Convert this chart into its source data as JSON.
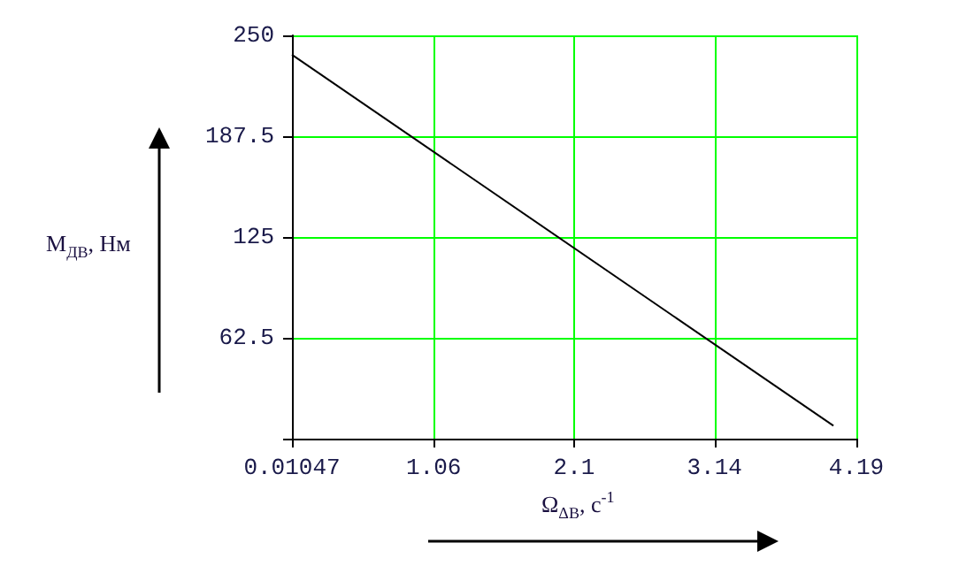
{
  "chart_data": {
    "type": "line",
    "xlabel": "Ω$_{ΔВ}$, c$^{-1}$",
    "ylabel": "M$_{ДВ}$, Нм",
    "x": [
      0.01047,
      4.02
    ],
    "series": [
      {
        "color": "#000000",
        "values": [
          238,
          8
        ]
      }
    ],
    "xlim": [
      0.01047,
      4.19
    ],
    "xticks": [
      0.01047,
      1.06,
      2.1,
      3.14,
      4.19
    ],
    "ylim": [
      0,
      250
    ],
    "yticks": [
      {
        "value": 0,
        "label": null
      },
      62.5,
      125,
      187.5,
      250
    ],
    "grid": true,
    "marker": "none",
    "line_style": "solid"
  }
}
